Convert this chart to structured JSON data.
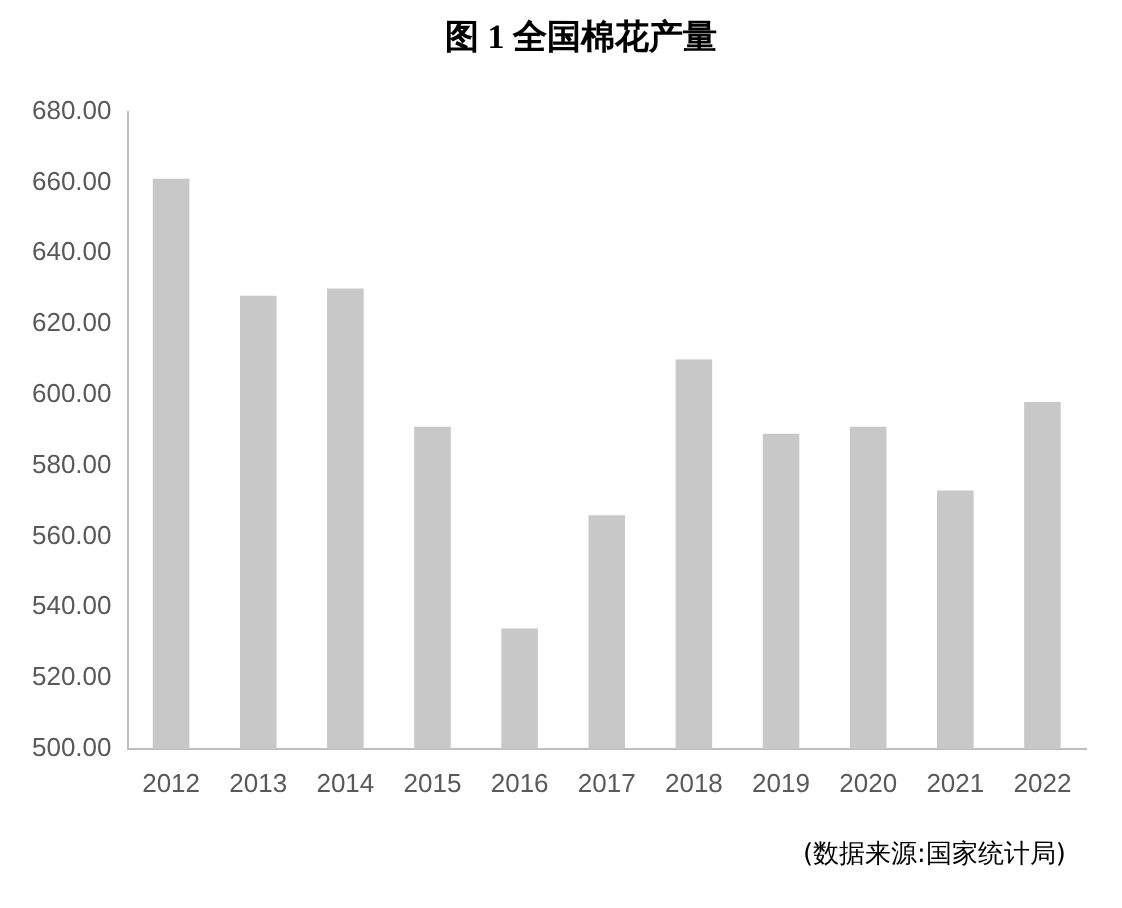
{
  "chart_data": {
    "type": "bar",
    "title": "图 1  全国棉花产量",
    "categories": [
      "2012",
      "2013",
      "2014",
      "2015",
      "2016",
      "2017",
      "2018",
      "2019",
      "2020",
      "2021",
      "2022"
    ],
    "values": [
      661,
      628,
      630,
      591,
      534,
      566,
      610,
      589,
      591,
      573,
      598
    ],
    "color": "#c8c8c8",
    "ylim": [
      500,
      680
    ],
    "yticks": [
      {
        "value": 500,
        "label": "500.00"
      },
      {
        "value": 520,
        "label": "520.00"
      },
      {
        "value": 540,
        "label": "540.00"
      },
      {
        "value": 560,
        "label": "560.00"
      },
      {
        "value": 580,
        "label": "580.00"
      },
      {
        "value": 600,
        "label": "600.00"
      },
      {
        "value": 620,
        "label": "620.00"
      },
      {
        "value": 640,
        "label": "640.00"
      },
      {
        "value": 660,
        "label": "660.00"
      },
      {
        "value": 680,
        "label": "680.00"
      }
    ],
    "grid": false,
    "legend": false,
    "annotations": [
      "(数据来源:国家统计局)"
    ]
  }
}
